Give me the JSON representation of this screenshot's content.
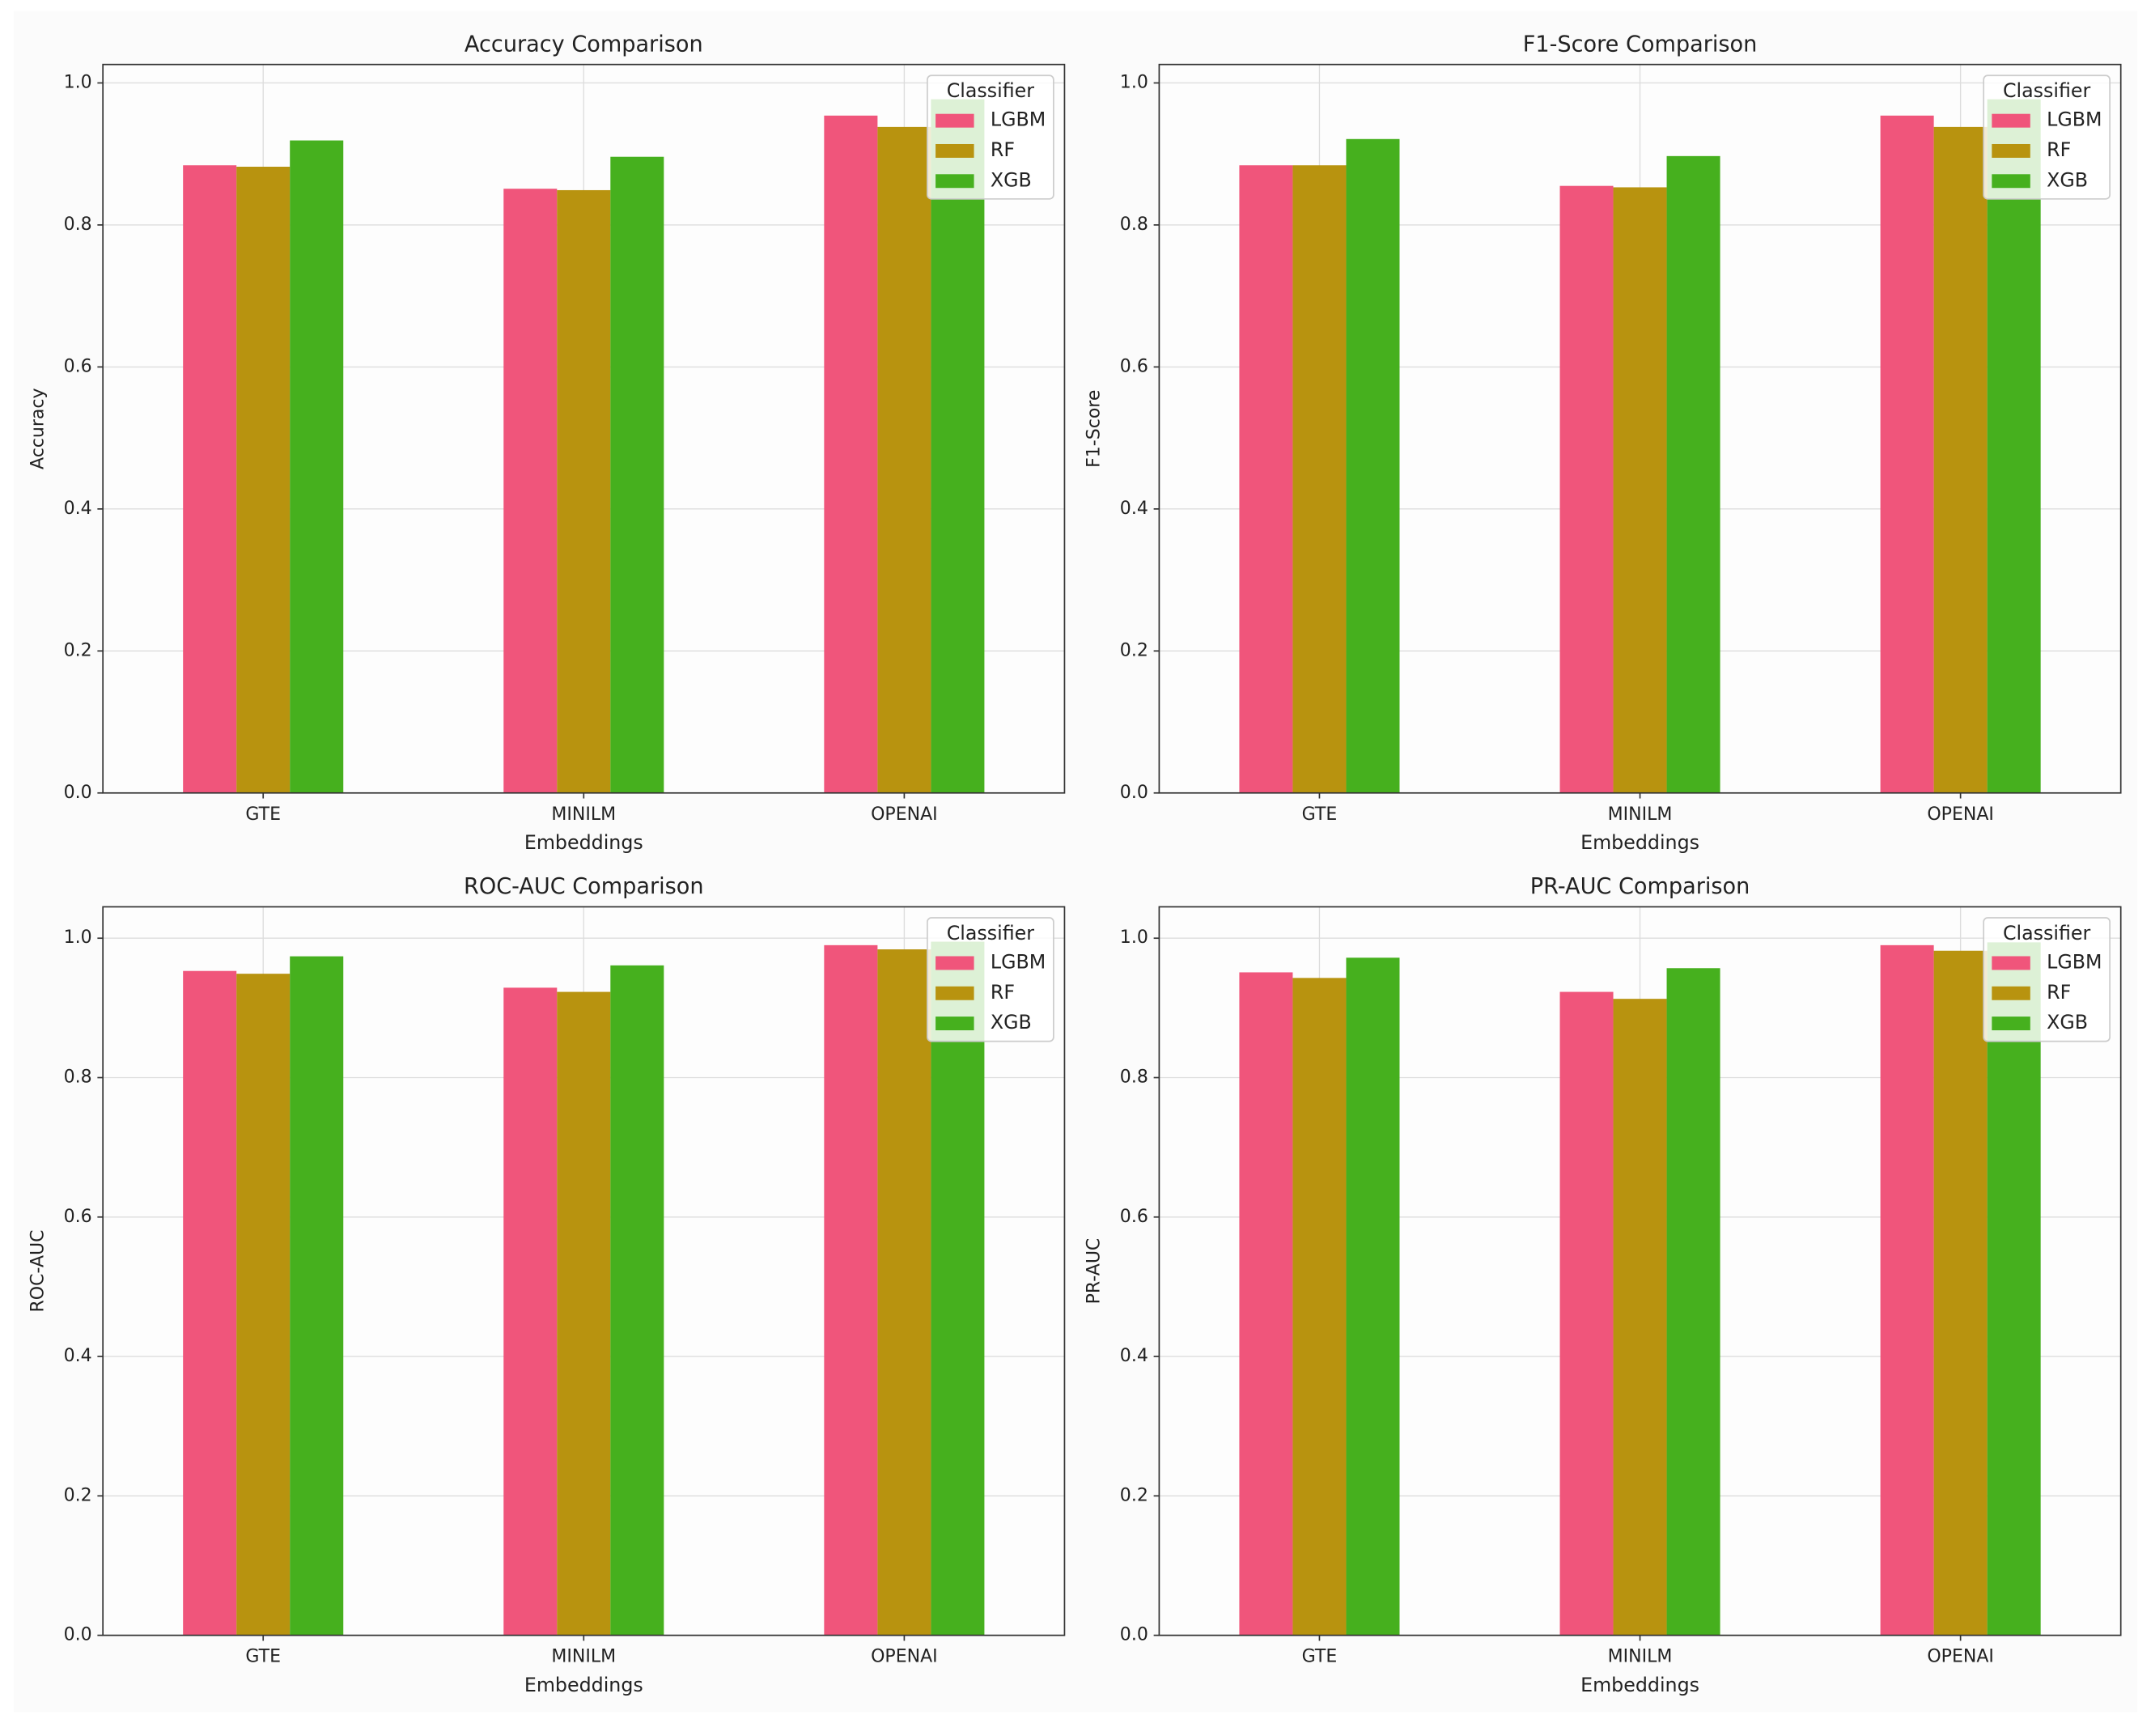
{
  "chart_data": [
    {
      "type": "bar",
      "title": "Accuracy Comparison",
      "xlabel": "Embeddings",
      "ylabel": "Accuracy",
      "categories": [
        "GTE",
        "MINILM",
        "OPENAI"
      ],
      "series": [
        {
          "name": "LGBM",
          "color": "#f0557b",
          "values": [
            0.884,
            0.851,
            0.954
          ]
        },
        {
          "name": "RF",
          "color": "#b8930f",
          "values": [
            0.882,
            0.849,
            0.938
          ]
        },
        {
          "name": "XGB",
          "color": "#46b01e",
          "values": [
            0.919,
            0.896,
            0.977
          ]
        }
      ],
      "ylim": [
        0,
        1.026
      ],
      "yticks": [
        {
          "value": 0,
          "label": "0.0"
        },
        0.2,
        0.4,
        0.6,
        0.8,
        {
          "value": 1,
          "label": "1.0"
        }
      ],
      "grid": true,
      "legend_title": "Classifier",
      "legend": "upper right"
    },
    {
      "type": "bar",
      "title": "F1-Score Comparison",
      "xlabel": "Embeddings",
      "ylabel": "F1-Score",
      "categories": [
        "GTE",
        "MINILM",
        "OPENAI"
      ],
      "series": [
        {
          "name": "LGBM",
          "color": "#f0557b",
          "values": [
            0.884,
            0.855,
            0.954
          ]
        },
        {
          "name": "RF",
          "color": "#b8930f",
          "values": [
            0.884,
            0.853,
            0.938
          ]
        },
        {
          "name": "XGB",
          "color": "#46b01e",
          "values": [
            0.921,
            0.897,
            0.977
          ]
        }
      ],
      "ylim": [
        0,
        1.026
      ],
      "yticks": [
        {
          "value": 0,
          "label": "0.0"
        },
        0.2,
        0.4,
        0.6,
        0.8,
        {
          "value": 1,
          "label": "1.0"
        }
      ],
      "grid": true,
      "legend_title": "Classifier",
      "legend": "upper right"
    },
    {
      "type": "bar",
      "title": "ROC-AUC Comparison",
      "xlabel": "Embeddings",
      "ylabel": "ROC-AUC",
      "categories": [
        "GTE",
        "MINILM",
        "OPENAI"
      ],
      "series": [
        {
          "name": "LGBM",
          "color": "#f0557b",
          "values": [
            0.953,
            0.929,
            0.99
          ]
        },
        {
          "name": "RF",
          "color": "#b8930f",
          "values": [
            0.949,
            0.923,
            0.984
          ]
        },
        {
          "name": "XGB",
          "color": "#46b01e",
          "values": [
            0.974,
            0.961,
            0.995
          ]
        }
      ],
      "ylim": [
        0,
        1.045
      ],
      "yticks": [
        {
          "value": 0,
          "label": "0.0"
        },
        0.2,
        0.4,
        0.6,
        0.8,
        {
          "value": 1,
          "label": "1.0"
        }
      ],
      "grid": true,
      "legend_title": "Classifier",
      "legend": "upper right"
    },
    {
      "type": "bar",
      "title": "PR-AUC Comparison",
      "xlabel": "Embeddings",
      "ylabel": "PR-AUC",
      "categories": [
        "GTE",
        "MINILM",
        "OPENAI"
      ],
      "series": [
        {
          "name": "LGBM",
          "color": "#f0557b",
          "values": [
            0.951,
            0.923,
            0.99
          ]
        },
        {
          "name": "RF",
          "color": "#b8930f",
          "values": [
            0.943,
            0.913,
            0.982
          ]
        },
        {
          "name": "XGB",
          "color": "#46b01e",
          "values": [
            0.972,
            0.957,
            0.994
          ]
        }
      ],
      "ylim": [
        0,
        1.045
      ],
      "yticks": [
        {
          "value": 0,
          "label": "0.0"
        },
        0.2,
        0.4,
        0.6,
        0.8,
        {
          "value": 1,
          "label": "1.0"
        }
      ],
      "grid": true,
      "legend_title": "Classifier",
      "legend": "upper right"
    }
  ]
}
